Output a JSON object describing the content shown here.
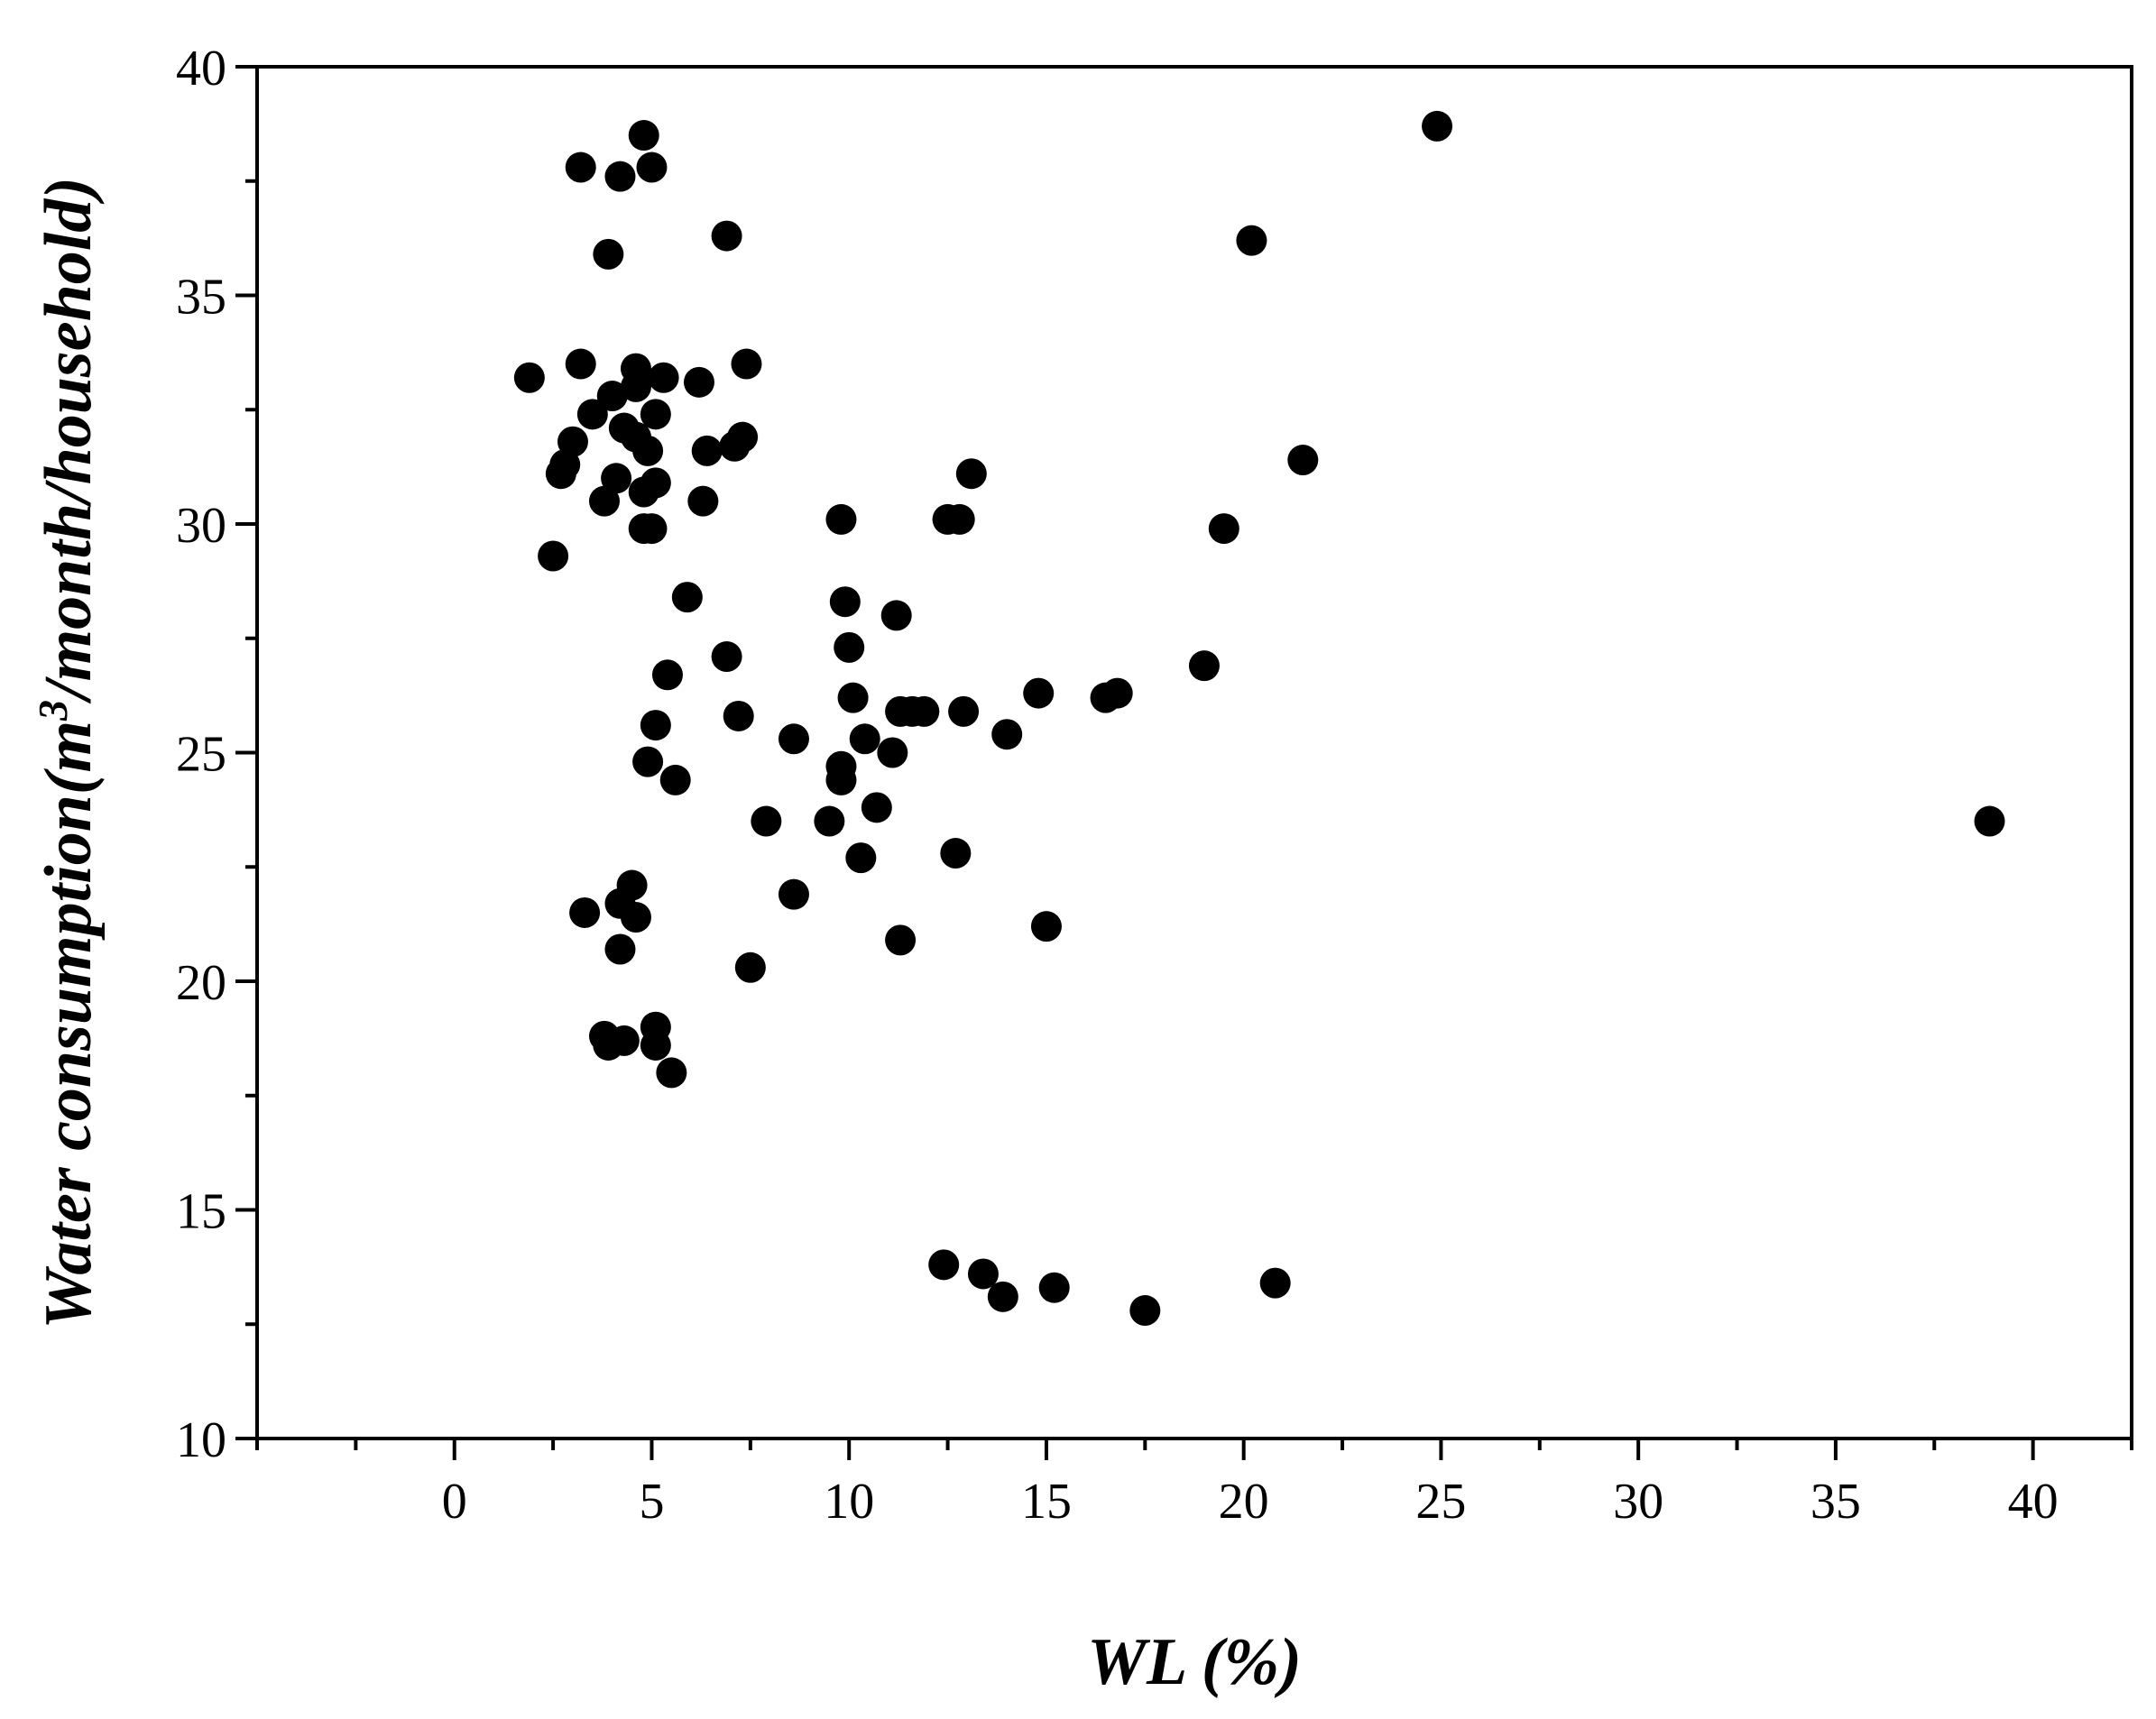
{
  "chart_data": {
    "type": "scatter",
    "xlabel": "WL (%)",
    "ylabel": {
      "prefix": "Water consumption(m",
      "sup": "3",
      "suffix": "/month/household)"
    },
    "xlim": [
      -5,
      42.5
    ],
    "ylim": [
      10,
      40
    ],
    "xticks": [
      0,
      5,
      10,
      15,
      20,
      25,
      30,
      35,
      40
    ],
    "yticks": [
      10,
      15,
      20,
      25,
      30,
      35,
      40
    ],
    "grid": false,
    "legend": "none",
    "marker_color": "#000000",
    "series": [
      {
        "points": [
          [
            4.8,
            38.5
          ],
          [
            3.2,
            37.8
          ],
          [
            4.2,
            37.6
          ],
          [
            5.0,
            37.8
          ],
          [
            3.9,
            35.9
          ],
          [
            6.9,
            36.3
          ],
          [
            1.9,
            33.2
          ],
          [
            3.2,
            33.5
          ],
          [
            4.6,
            33.4
          ],
          [
            5.3,
            33.2
          ],
          [
            6.2,
            33.1
          ],
          [
            7.4,
            33.5
          ],
          [
            3.5,
            32.4
          ],
          [
            4.0,
            32.8
          ],
          [
            4.6,
            33.0
          ],
          [
            5.1,
            32.4
          ],
          [
            4.3,
            32.1
          ],
          [
            4.6,
            31.9
          ],
          [
            3.0,
            31.8
          ],
          [
            2.8,
            31.3
          ],
          [
            2.7,
            31.1
          ],
          [
            6.4,
            31.6
          ],
          [
            7.3,
            31.9
          ],
          [
            7.1,
            31.7
          ],
          [
            4.9,
            31.6
          ],
          [
            4.1,
            31.0
          ],
          [
            5.1,
            30.9
          ],
          [
            4.8,
            30.7
          ],
          [
            3.8,
            30.5
          ],
          [
            6.3,
            30.5
          ],
          [
            2.5,
            29.3
          ],
          [
            4.8,
            29.9
          ],
          [
            5.0,
            29.9
          ],
          [
            5.9,
            28.4
          ],
          [
            6.9,
            27.1
          ],
          [
            5.4,
            26.7
          ],
          [
            7.2,
            25.8
          ],
          [
            5.1,
            25.6
          ],
          [
            4.9,
            24.8
          ],
          [
            5.6,
            24.4
          ],
          [
            8.6,
            25.3
          ],
          [
            7.9,
            23.5
          ],
          [
            9.8,
            30.1
          ],
          [
            9.9,
            28.3
          ],
          [
            10.0,
            27.3
          ],
          [
            10.1,
            26.2
          ],
          [
            9.8,
            24.7
          ],
          [
            9.8,
            24.4
          ],
          [
            9.5,
            23.5
          ],
          [
            10.4,
            25.3
          ],
          [
            10.7,
            23.8
          ],
          [
            10.3,
            22.7
          ],
          [
            8.6,
            21.9
          ],
          [
            7.5,
            20.3
          ],
          [
            11.2,
            28.0
          ],
          [
            11.3,
            25.9
          ],
          [
            11.6,
            25.9
          ],
          [
            11.9,
            25.9
          ],
          [
            11.1,
            25.0
          ],
          [
            11.3,
            20.9
          ],
          [
            12.5,
            30.1
          ],
          [
            12.8,
            30.1
          ],
          [
            13.1,
            31.1
          ],
          [
            12.9,
            25.9
          ],
          [
            12.7,
            22.8
          ],
          [
            14.0,
            25.4
          ],
          [
            14.8,
            26.3
          ],
          [
            15.0,
            21.2
          ],
          [
            16.5,
            26.2
          ],
          [
            16.8,
            26.3
          ],
          [
            19.0,
            26.9
          ],
          [
            19.5,
            29.9
          ],
          [
            20.2,
            36.2
          ],
          [
            21.5,
            31.4
          ],
          [
            24.9,
            38.7
          ],
          [
            38.9,
            23.5
          ],
          [
            3.3,
            21.5
          ],
          [
            4.2,
            21.7
          ],
          [
            4.5,
            22.1
          ],
          [
            4.6,
            21.4
          ],
          [
            4.2,
            20.7
          ],
          [
            3.8,
            18.8
          ],
          [
            3.9,
            18.6
          ],
          [
            4.3,
            18.7
          ],
          [
            5.1,
            19.0
          ],
          [
            5.1,
            18.6
          ],
          [
            5.5,
            18.0
          ],
          [
            12.4,
            13.8
          ],
          [
            13.4,
            13.6
          ],
          [
            13.9,
            13.1
          ],
          [
            15.2,
            13.3
          ],
          [
            17.5,
            12.8
          ],
          [
            20.8,
            13.4
          ]
        ]
      }
    ]
  }
}
